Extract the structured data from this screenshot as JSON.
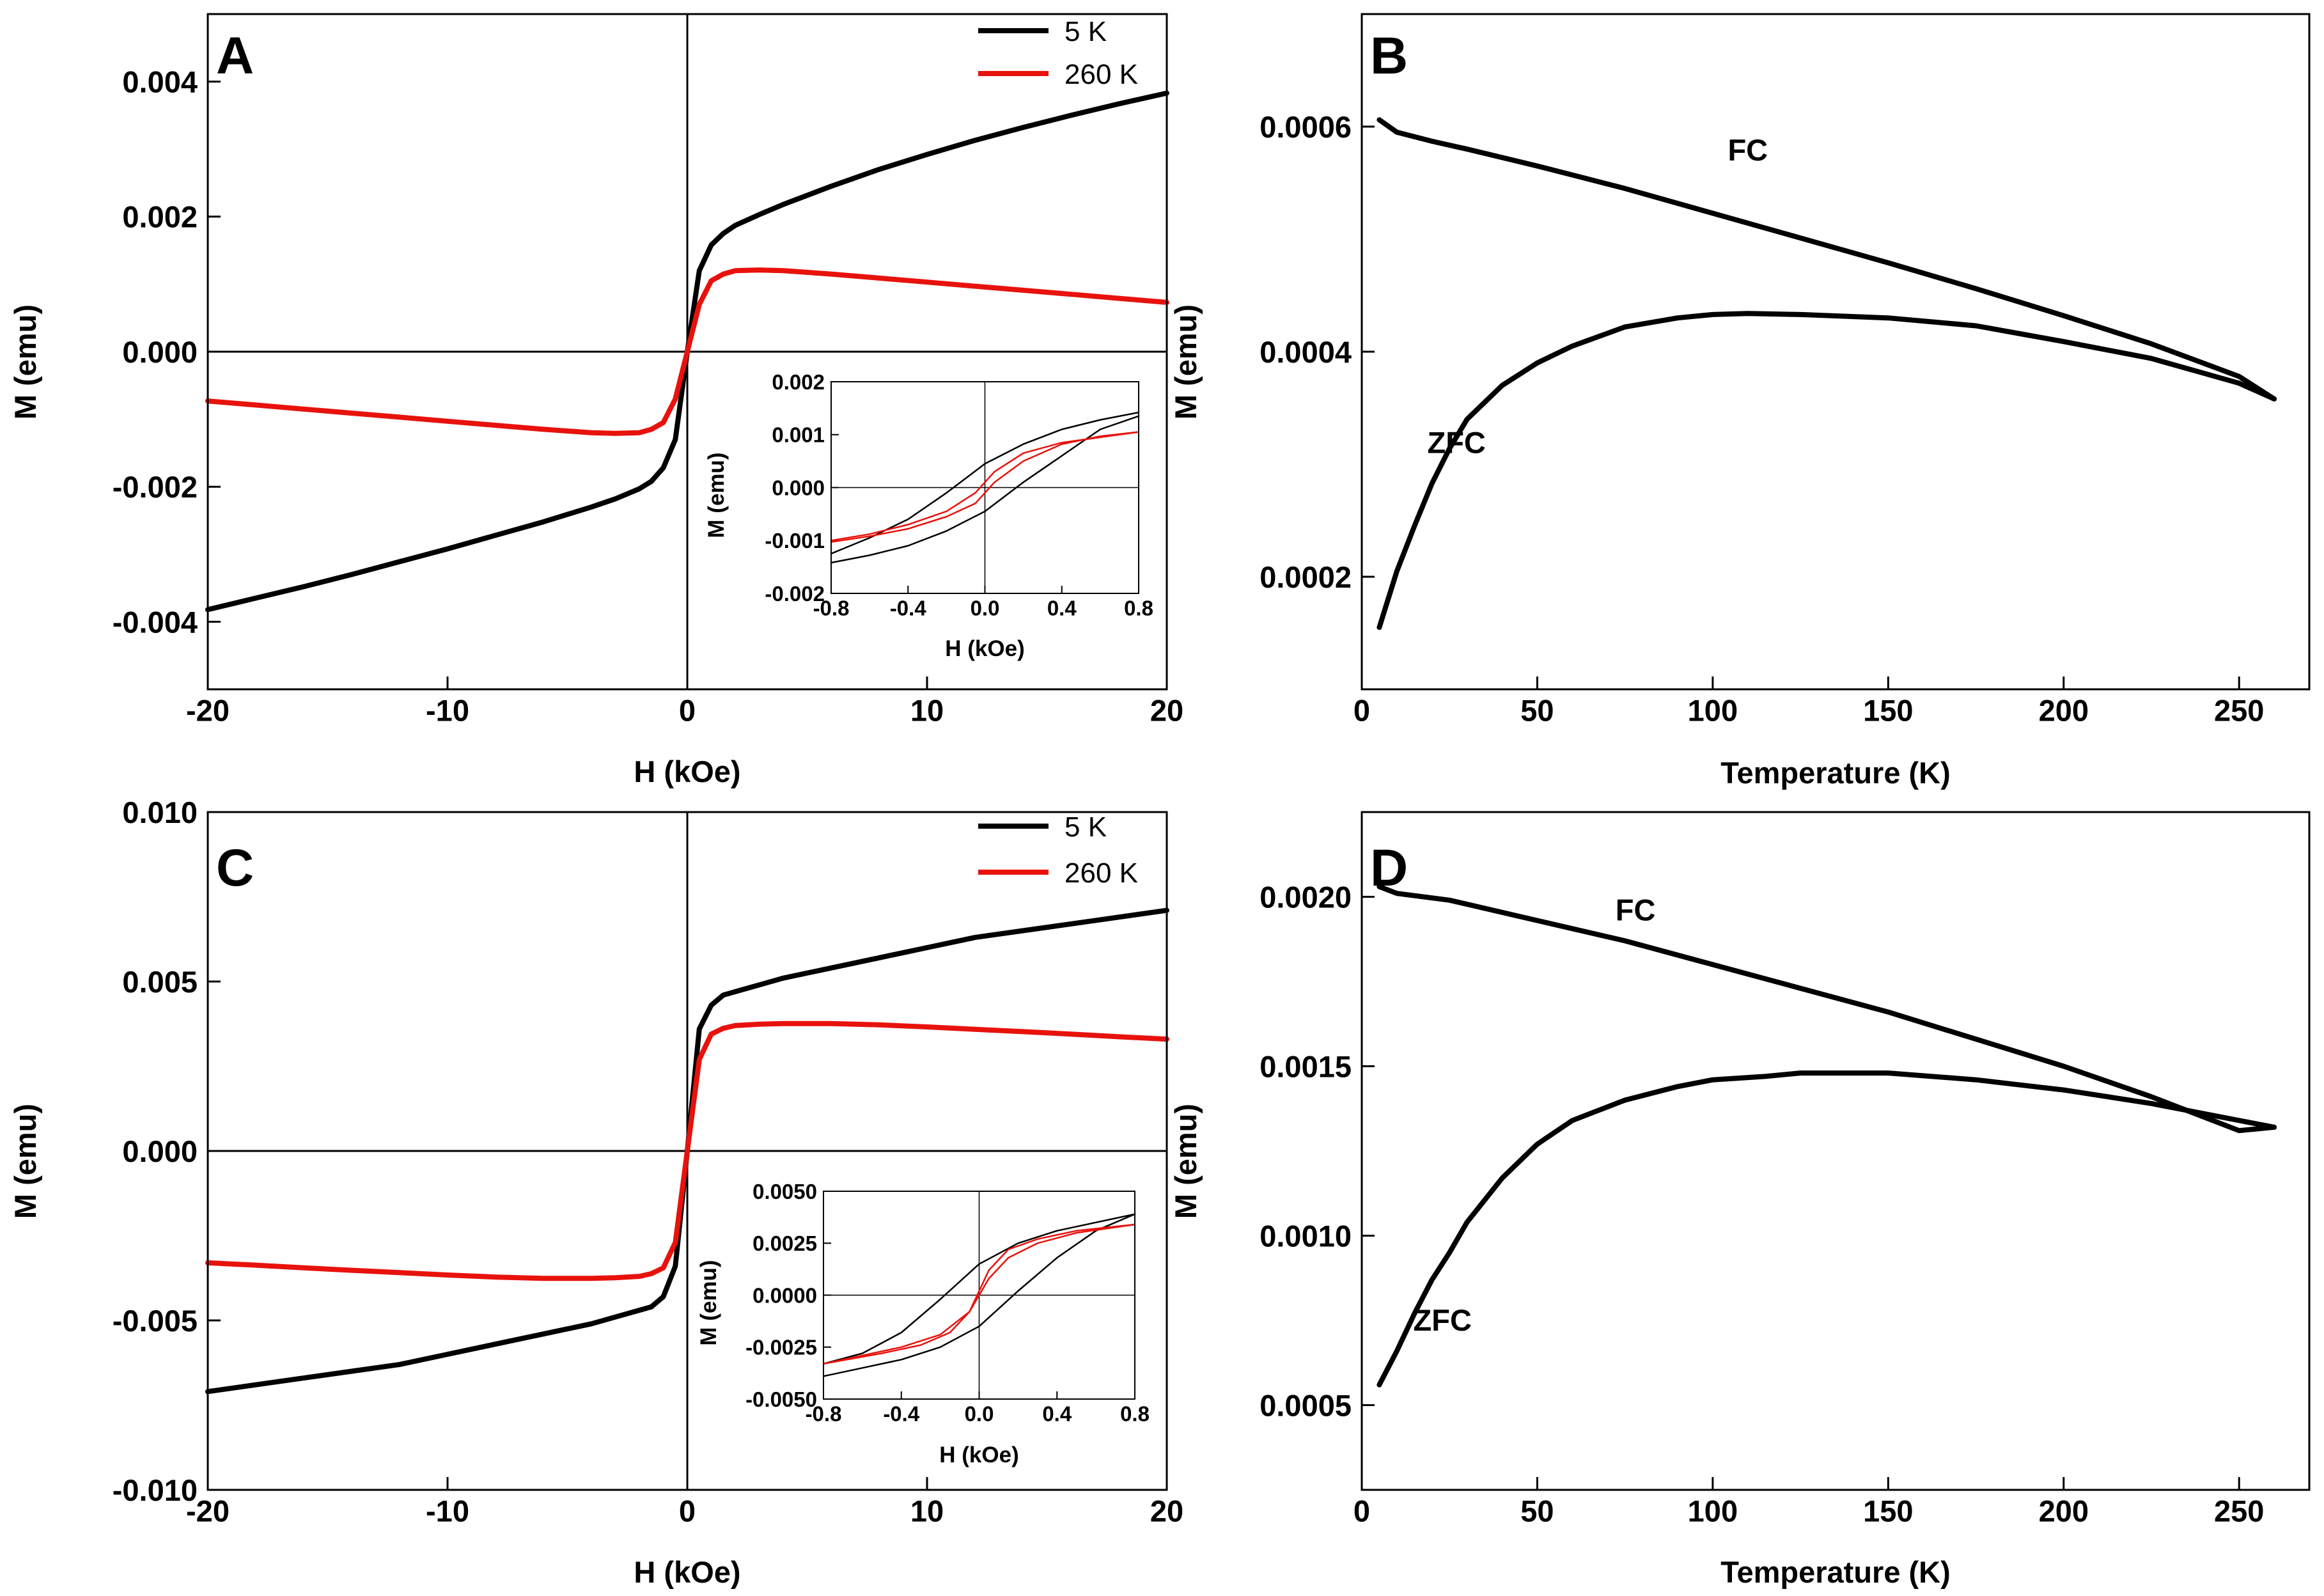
{
  "colors": {
    "black_series": "#000000",
    "red_series": "#e8120c",
    "axes": "#000000"
  },
  "chart_data": [
    {
      "panel": "A",
      "type": "line",
      "title": "",
      "xlabel": "H (kOe)",
      "ylabel": "M (emu)",
      "xlim": [
        -20,
        20
      ],
      "ylim": [
        -0.005,
        0.005
      ],
      "xticks": [
        -20,
        -10,
        0,
        10,
        20
      ],
      "xtick_labels": [
        "-20",
        "-10",
        "0",
        "10",
        "20"
      ],
      "yticks": [
        -0.004,
        -0.002,
        0.0,
        0.002,
        0.004
      ],
      "ytick_labels": [
        "-0.004",
        "-0.002",
        "0.000",
        "0.002",
        "0.004"
      ],
      "legend_position": "top-right",
      "series": [
        {
          "name": "5 K",
          "color": "#000000",
          "x": [
            -20,
            -18,
            -16,
            -14,
            -12,
            -10,
            -8,
            -6,
            -4,
            -3,
            -2,
            -1.5,
            -1,
            -0.5,
            0,
            0.5,
            1,
            1.5,
            2,
            3,
            4,
            6,
            8,
            10,
            12,
            14,
            16,
            18,
            20
          ],
          "y": [
            -0.00382,
            -0.00365,
            -0.00348,
            -0.0033,
            -0.00311,
            -0.00292,
            -0.00272,
            -0.00252,
            -0.0023,
            -0.00218,
            -0.00203,
            -0.00192,
            -0.00172,
            -0.0013,
            0.0,
            0.0012,
            0.00158,
            0.00175,
            0.00187,
            0.00203,
            0.00218,
            0.00245,
            0.0027,
            0.00292,
            0.00313,
            0.00332,
            0.0035,
            0.00367,
            0.00383
          ]
        },
        {
          "name": "260 K",
          "color": "#e8120c",
          "x": [
            -20,
            -18,
            -16,
            -14,
            -12,
            -10,
            -8,
            -6,
            -4,
            -3,
            -2,
            -1.5,
            -1,
            -0.5,
            0,
            0.5,
            1,
            1.5,
            2,
            3,
            4,
            6,
            8,
            10,
            12,
            14,
            16,
            18,
            20
          ],
          "y": [
            -0.00073,
            -0.00079,
            -0.00085,
            -0.00091,
            -0.00097,
            -0.00103,
            -0.00109,
            -0.00115,
            -0.0012,
            -0.00121,
            -0.0012,
            -0.00115,
            -0.00105,
            -0.0007,
            0.0,
            0.0007,
            0.00105,
            0.00115,
            0.0012,
            0.00121,
            0.0012,
            0.00115,
            0.00109,
            0.00103,
            0.00097,
            0.00091,
            0.00085,
            0.00079,
            0.00073
          ]
        }
      ],
      "inset": {
        "xlabel": "H (kOe)",
        "ylabel": "M (emu)",
        "xlim": [
          -0.8,
          0.8
        ],
        "ylim": [
          -0.002,
          0.002
        ],
        "xticks": [
          -0.8,
          -0.4,
          0.0,
          0.4,
          0.8
        ],
        "xtick_labels": [
          "-0.8",
          "-0.4",
          "0.0",
          "0.4",
          "0.8"
        ],
        "yticks": [
          -0.002,
          -0.001,
          0.0,
          0.001,
          0.002
        ],
        "ytick_labels": [
          "-0.002",
          "-0.001",
          "0.000",
          "0.001",
          "0.002"
        ],
        "series": [
          {
            "name": "5 K ascending",
            "color": "#000000",
            "x": [
              -0.8,
              -0.6,
              -0.4,
              -0.2,
              0.0,
              0.2,
              0.4,
              0.6,
              0.8
            ],
            "y": [
              -0.00142,
              -0.00128,
              -0.0011,
              -0.00082,
              -0.00045,
              0.0001,
              0.0006,
              0.0011,
              0.00135
            ]
          },
          {
            "name": "5 K descending",
            "color": "#000000",
            "x": [
              0.8,
              0.6,
              0.4,
              0.2,
              0.0,
              -0.2,
              -0.4,
              -0.6,
              -0.8
            ],
            "y": [
              0.00142,
              0.00128,
              0.0011,
              0.00082,
              0.00045,
              -0.0001,
              -0.0006,
              -0.00095,
              -0.00125
            ]
          },
          {
            "name": "260 K ascending",
            "color": "#e8120c",
            "x": [
              -0.8,
              -0.6,
              -0.4,
              -0.2,
              -0.05,
              0.05,
              0.2,
              0.4,
              0.6,
              0.8
            ],
            "y": [
              -0.00103,
              -0.00092,
              -0.00078,
              -0.00055,
              -0.0003,
              0.0001,
              0.0005,
              0.00082,
              0.00097,
              0.00105
            ]
          },
          {
            "name": "260 K descending",
            "color": "#e8120c",
            "x": [
              0.8,
              0.6,
              0.4,
              0.2,
              0.05,
              -0.05,
              -0.2,
              -0.4,
              -0.6,
              -0.8
            ],
            "y": [
              0.00105,
              0.00095,
              0.00085,
              0.00065,
              0.0003,
              -0.0001,
              -0.00045,
              -0.0007,
              -0.00088,
              -0.001
            ]
          }
        ]
      }
    },
    {
      "panel": "B",
      "type": "line",
      "title": "",
      "xlabel": "Temperature (K)",
      "ylabel": "M (emu)",
      "xlim": [
        0,
        270
      ],
      "ylim": [
        0.0001,
        0.0007
      ],
      "xticks": [
        0,
        50,
        100,
        150,
        200,
        250
      ],
      "xtick_labels": [
        "0",
        "50",
        "100",
        "150",
        "200",
        "250"
      ],
      "yticks": [
        0.0002,
        0.0004,
        0.0006
      ],
      "ytick_labels": [
        "0.0002",
        "0.0004",
        "0.0006"
      ],
      "annotations": [
        {
          "text": "FC",
          "x": 110,
          "y": 0.00057
        },
        {
          "text": "ZFC",
          "x": 27,
          "y": 0.00031
        }
      ],
      "series": [
        {
          "name": "FC",
          "color": "#000000",
          "x": [
            5,
            10,
            20,
            30,
            50,
            75,
            100,
            125,
            150,
            175,
            200,
            225,
            250,
            260
          ],
          "y": [
            0.000606,
            0.000595,
            0.000587,
            0.00058,
            0.000565,
            0.000545,
            0.000523,
            0.000501,
            0.000479,
            0.000456,
            0.000432,
            0.000407,
            0.000378,
            0.000358
          ]
        },
        {
          "name": "ZFC",
          "color": "#000000",
          "x": [
            5,
            10,
            15,
            20,
            25,
            30,
            40,
            50,
            60,
            75,
            90,
            100,
            110,
            125,
            150,
            175,
            200,
            225,
            250,
            260
          ],
          "y": [
            0.000155,
            0.000205,
            0.000245,
            0.000283,
            0.000314,
            0.00034,
            0.00037,
            0.00039,
            0.000405,
            0.000422,
            0.00043,
            0.000433,
            0.000434,
            0.000433,
            0.00043,
            0.000423,
            0.000409,
            0.000394,
            0.000372,
            0.000358
          ]
        }
      ]
    },
    {
      "panel": "C",
      "type": "line",
      "title": "",
      "xlabel": "H (kOe)",
      "ylabel": "M (emu)",
      "xlim": [
        -20,
        20
      ],
      "ylim": [
        -0.01,
        0.01
      ],
      "xticks": [
        -20,
        -10,
        0,
        10,
        20
      ],
      "xtick_labels": [
        "-20",
        "-10",
        "0",
        "10",
        "20"
      ],
      "yticks": [
        -0.01,
        -0.005,
        0.0,
        0.005,
        0.01
      ],
      "ytick_labels": [
        "-0.010",
        "-0.005",
        "0.000",
        "0.005",
        "0.010"
      ],
      "legend_position": "top-right",
      "series": [
        {
          "name": "5 K",
          "color": "#000000",
          "x": [
            -20,
            -18,
            -16,
            -14,
            -12,
            -10,
            -8,
            -6,
            -4,
            -3,
            -2,
            -1.5,
            -1,
            -0.5,
            0,
            0.5,
            1,
            1.5,
            2,
            3,
            4,
            6,
            8,
            10,
            12,
            14,
            16,
            18,
            20
          ],
          "y": [
            -0.0071,
            -0.0069,
            -0.0067,
            -0.0065,
            -0.0063,
            -0.006,
            -0.0057,
            -0.0054,
            -0.0051,
            -0.0049,
            -0.0047,
            -0.0046,
            -0.0043,
            -0.0034,
            0.0,
            0.0036,
            0.0043,
            0.0046,
            0.0047,
            0.0049,
            0.0051,
            0.0054,
            0.0057,
            0.006,
            0.0063,
            0.0065,
            0.0067,
            0.0069,
            0.0071
          ]
        },
        {
          "name": "260 K",
          "color": "#e8120c",
          "x": [
            -20,
            -18,
            -16,
            -14,
            -12,
            -10,
            -8,
            -6,
            -4,
            -3,
            -2,
            -1.5,
            -1,
            -0.5,
            0,
            0.5,
            1,
            1.5,
            2,
            3,
            4,
            6,
            8,
            10,
            12,
            14,
            16,
            18,
            20
          ],
          "y": [
            -0.0033,
            -0.00337,
            -0.00345,
            -0.00352,
            -0.00359,
            -0.00366,
            -0.00372,
            -0.00376,
            -0.00376,
            -0.00374,
            -0.0037,
            -0.00362,
            -0.00345,
            -0.0027,
            0.0,
            0.0027,
            0.00345,
            0.00362,
            0.0037,
            0.00374,
            0.00376,
            0.00376,
            0.00372,
            0.00366,
            0.00359,
            0.00352,
            0.00345,
            0.00337,
            0.0033
          ]
        }
      ],
      "inset": {
        "xlabel": "H (kOe)",
        "ylabel": "M (emu)",
        "xlim": [
          -0.8,
          0.8
        ],
        "ylim": [
          -0.005,
          0.005
        ],
        "xticks": [
          -0.8,
          -0.4,
          0.0,
          0.4,
          0.8
        ],
        "xtick_labels": [
          "-0.8",
          "-0.4",
          "0.0",
          "0.4",
          "0.8"
        ],
        "yticks": [
          -0.005,
          -0.0025,
          0.0,
          0.0025,
          0.005
        ],
        "ytick_labels": [
          "-0.0050",
          "-0.0025",
          "0.0000",
          "0.0025",
          "0.0050"
        ],
        "series": [
          {
            "name": "5 K ascending",
            "color": "#000000",
            "x": [
              -0.8,
              -0.6,
              -0.4,
              -0.2,
              0.0,
              0.2,
              0.4,
              0.6,
              0.8
            ],
            "y": [
              -0.0039,
              -0.0035,
              -0.0031,
              -0.0025,
              -0.0015,
              0.0002,
              0.0018,
              0.0031,
              0.0039
            ]
          },
          {
            "name": "5 K descending",
            "color": "#000000",
            "x": [
              0.8,
              0.6,
              0.4,
              0.2,
              0.0,
              -0.2,
              -0.4,
              -0.6,
              -0.8
            ],
            "y": [
              0.0039,
              0.0035,
              0.0031,
              0.0025,
              0.0015,
              -0.0002,
              -0.0018,
              -0.0028,
              -0.0033
            ]
          },
          {
            "name": "260 K ascending",
            "color": "#e8120c",
            "x": [
              -0.8,
              -0.6,
              -0.4,
              -0.2,
              -0.05,
              0.05,
              0.15,
              0.3,
              0.5,
              0.8
            ],
            "y": [
              -0.0033,
              -0.0029,
              -0.0025,
              -0.0019,
              -0.0008,
              0.0008,
              0.0018,
              0.0025,
              0.003,
              0.0034
            ]
          },
          {
            "name": "260 K descending",
            "color": "#e8120c",
            "x": [
              0.8,
              0.5,
              0.3,
              0.15,
              0.05,
              -0.05,
              -0.15,
              -0.3,
              -0.5,
              -0.8
            ],
            "y": [
              0.0034,
              0.0031,
              0.0027,
              0.0022,
              0.0012,
              -0.0008,
              -0.0018,
              -0.0024,
              -0.0028,
              -0.0033
            ]
          }
        ]
      }
    },
    {
      "panel": "D",
      "type": "line",
      "title": "",
      "xlabel": "Temperature (K)",
      "ylabel": "M (emu)",
      "xlim": [
        0,
        270
      ],
      "ylim": [
        0.00025,
        0.00225
      ],
      "xticks": [
        0,
        50,
        100,
        150,
        200,
        250
      ],
      "xtick_labels": [
        "0",
        "50",
        "100",
        "150",
        "200",
        "250"
      ],
      "yticks": [
        0.0005,
        0.001,
        0.0015,
        0.002
      ],
      "ytick_labels": [
        "0.0005",
        "0.0010",
        "0.0015",
        "0.0020"
      ],
      "annotations": [
        {
          "text": "FC",
          "x": 78,
          "y": 0.00193
        },
        {
          "text": "ZFC",
          "x": 23,
          "y": 0.00072
        }
      ],
      "series": [
        {
          "name": "FC",
          "color": "#000000",
          "x": [
            5,
            10,
            25,
            50,
            75,
            100,
            125,
            150,
            175,
            200,
            225,
            250,
            260
          ],
          "y": [
            0.00203,
            0.00201,
            0.00199,
            0.00193,
            0.00187,
            0.0018,
            0.00173,
            0.00166,
            0.00158,
            0.0015,
            0.00141,
            0.00131,
            0.00132
          ]
        },
        {
          "name": "ZFC",
          "color": "#000000",
          "x": [
            5,
            10,
            15,
            20,
            25,
            30,
            40,
            50,
            60,
            75,
            90,
            100,
            115,
            125,
            140,
            150,
            175,
            200,
            225,
            250,
            260
          ],
          "y": [
            0.00056,
            0.00066,
            0.00077,
            0.00087,
            0.00095,
            0.00104,
            0.00117,
            0.00127,
            0.00134,
            0.0014,
            0.00144,
            0.00146,
            0.00147,
            0.00148,
            0.00148,
            0.00148,
            0.00146,
            0.00143,
            0.00139,
            0.00134,
            0.00132
          ]
        }
      ]
    }
  ]
}
